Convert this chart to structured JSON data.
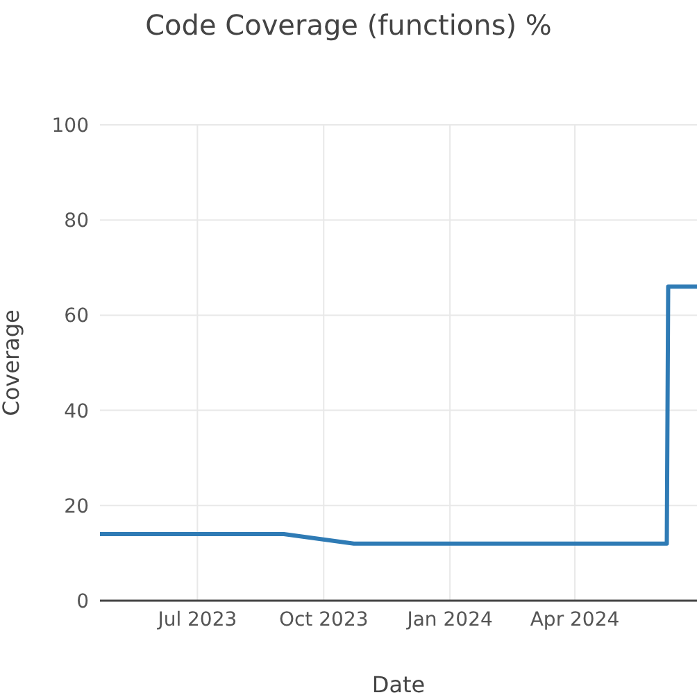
{
  "chart_data": {
    "type": "line",
    "title": "Code Coverage (functions) %",
    "xlabel": "Date",
    "ylabel": "Coverage",
    "x": [
      "2023-04-21",
      "2023-09-02",
      "2023-10-23",
      "2024-06-07",
      "2024-06-08",
      "2024-06-29"
    ],
    "series": [
      {
        "color": "#2f7bb5",
        "values": [
          14,
          14,
          12,
          12,
          66,
          66
        ]
      }
    ],
    "xlim": [
      "2023-04-21",
      "2024-06-29"
    ],
    "xticks": [
      {
        "value": "2023-07-01",
        "label": "Jul 2023"
      },
      {
        "value": "2023-10-01",
        "label": "Oct 2023"
      },
      {
        "value": "2024-01-01",
        "label": "Jan 2024"
      },
      {
        "value": "2024-04-01",
        "label": "Apr 2024"
      }
    ],
    "ylim": [
      0,
      100
    ],
    "yticks": [
      0,
      20,
      40,
      60,
      80,
      100
    ],
    "grid": true,
    "legend": false,
    "marker": "none",
    "line_style": "solid"
  }
}
